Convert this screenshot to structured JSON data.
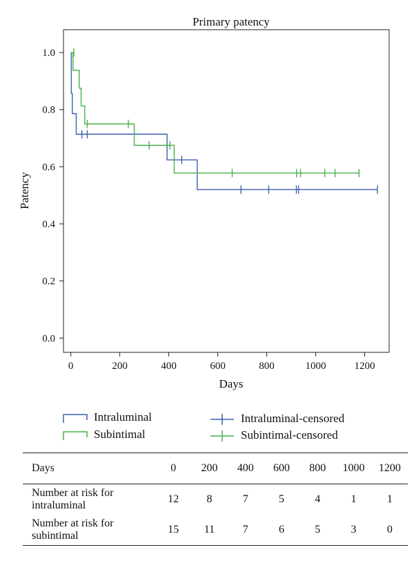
{
  "chart_data": {
    "type": "line",
    "title": "Primary patency",
    "xlabel": "Days",
    "ylabel": "Patency",
    "xlim": [
      -30,
      1300
    ],
    "ylim": [
      -0.05,
      1.08
    ],
    "xticks": [
      0,
      200,
      400,
      600,
      800,
      1000,
      1200
    ],
    "yticks": [
      0.0,
      0.2,
      0.4,
      0.6,
      0.8,
      1.0
    ],
    "ytick_labels": [
      "0.0",
      "0.2",
      "0.4",
      "0.6",
      "0.8",
      "1.0"
    ],
    "grid": false,
    "series": [
      {
        "name": "Intraluminal",
        "color": "#3a5fb0",
        "steps": [
          [
            0,
            1.0
          ],
          [
            2,
            0.857
          ],
          [
            6,
            0.786
          ],
          [
            22,
            0.714
          ],
          [
            393,
            0.624
          ],
          [
            516,
            0.52
          ],
          [
            1252,
            0.52
          ]
        ],
        "censored": [
          [
            45,
            0.714
          ],
          [
            67,
            0.714
          ],
          [
            453,
            0.624
          ],
          [
            695,
            0.52
          ],
          [
            808,
            0.52
          ],
          [
            921,
            0.52
          ],
          [
            930,
            0.52
          ],
          [
            1252,
            0.52
          ]
        ]
      },
      {
        "name": "Subintimal",
        "color": "#46b04a",
        "steps": [
          [
            0,
            1.0
          ],
          [
            9,
            0.938
          ],
          [
            34,
            0.875
          ],
          [
            42,
            0.813
          ],
          [
            57,
            0.75
          ],
          [
            259,
            0.675
          ],
          [
            422,
            0.578
          ],
          [
            1177,
            0.578
          ]
        ],
        "censored": [
          [
            12,
            1.0
          ],
          [
            67,
            0.75
          ],
          [
            235,
            0.75
          ],
          [
            320,
            0.675
          ],
          [
            405,
            0.675
          ],
          [
            659,
            0.578
          ],
          [
            922,
            0.578
          ],
          [
            938,
            0.578
          ],
          [
            1037,
            0.578
          ],
          [
            1079,
            0.578
          ],
          [
            1177,
            0.578
          ]
        ]
      }
    ],
    "legend": {
      "placement": "bottom",
      "entries": [
        {
          "label": "Intraluminal",
          "kind": "step",
          "color": "#3a5fb0"
        },
        {
          "label": "Subintimal",
          "kind": "step",
          "color": "#46b04a"
        },
        {
          "label": "Intraluminal-censored",
          "kind": "censor",
          "color": "#3a5fb0"
        },
        {
          "label": "Subintimal-censored",
          "kind": "censor",
          "color": "#46b04a"
        }
      ]
    }
  },
  "risk_table": {
    "header_label": "Days",
    "days": [
      "0",
      "200",
      "400",
      "600",
      "800",
      "1000",
      "1200"
    ],
    "rows": [
      {
        "label_line1": "Number at risk for",
        "label_line2": "intraluminal",
        "values": [
          "12",
          "8",
          "7",
          "5",
          "4",
          "1",
          "1"
        ]
      },
      {
        "label_line1": "Number at risk for",
        "label_line2": "subintimal",
        "values": [
          "15",
          "11",
          "7",
          "6",
          "5",
          "3",
          "0"
        ]
      }
    ]
  }
}
